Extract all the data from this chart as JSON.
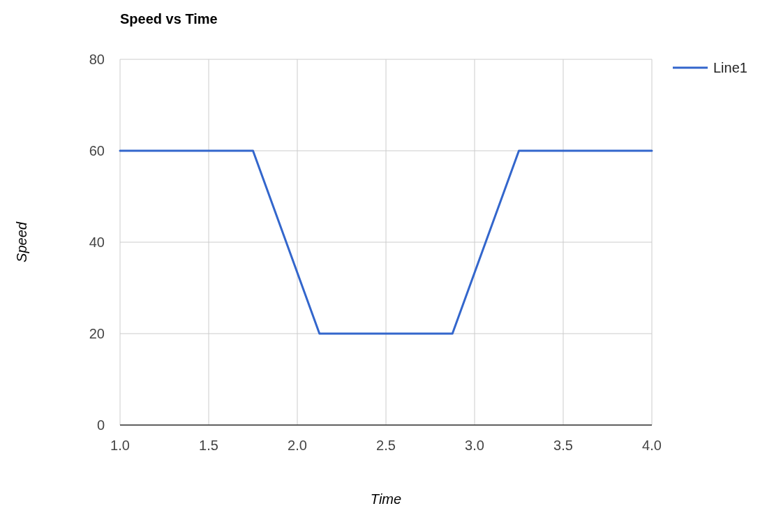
{
  "chart_data": {
    "type": "line",
    "title": "Speed vs Time",
    "xlabel": "Time",
    "ylabel": "Speed",
    "x": [
      1.0,
      1.75,
      2.125,
      2.875,
      3.25,
      4.0
    ],
    "series": [
      {
        "name": "Line1",
        "color": "#3366cc",
        "values": [
          60,
          60,
          20,
          20,
          60,
          60
        ]
      }
    ],
    "xlim": [
      1.0,
      4.0
    ],
    "ylim": [
      0,
      80
    ],
    "xticks": [
      {
        "value": 1,
        "label": "1.0"
      },
      {
        "value": 1.5,
        "label": "1.5"
      },
      {
        "value": 2,
        "label": "2.0"
      },
      {
        "value": 2.5,
        "label": "2.5"
      },
      {
        "value": 3,
        "label": "3.0"
      },
      {
        "value": 3.5,
        "label": "3.5"
      },
      {
        "value": 4,
        "label": "4.0"
      }
    ],
    "yticks": [
      0,
      20,
      40,
      60,
      80
    ],
    "grid": true,
    "legend": "top right",
    "marker": "none",
    "line_style": "solid"
  }
}
